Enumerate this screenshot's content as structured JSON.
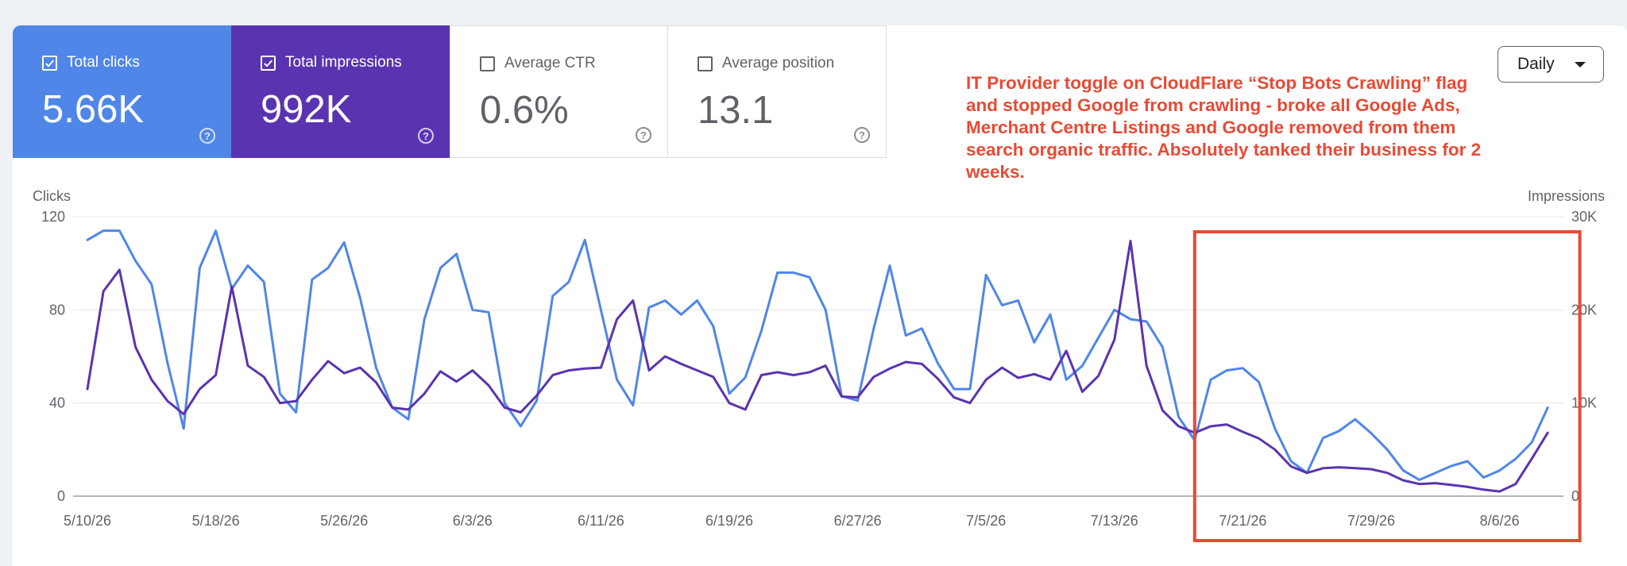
{
  "metrics": [
    {
      "label": "Total clicks",
      "value": "5.66K",
      "checked": true
    },
    {
      "label": "Total impressions",
      "value": "992K",
      "checked": true
    },
    {
      "label": "Average CTR",
      "value": "0.6%",
      "checked": false
    },
    {
      "label": "Average position",
      "value": "13.1",
      "checked": false
    }
  ],
  "help_glyph": "?",
  "dropdown": {
    "label": "Daily"
  },
  "annotation": "IT Provider toggle on CloudFlare “Stop Bots Crawling” flag and stopped Google from crawling - broke all Google Ads, Merchant Centre Listings and Google removed from them search organic traffic. Absolutely tanked their business for 2 weeks.",
  "colors": {
    "clicks": "#4f86e8",
    "impressions": "#5a34b0",
    "annotation": "#e84a34",
    "grid": "#e4e6ea"
  },
  "chart_data": {
    "type": "line",
    "left_axis_title": "Clicks",
    "right_axis_title": "Impressions",
    "left_ticks": [
      "120",
      "80",
      "40",
      "0"
    ],
    "right_ticks": [
      "30K",
      "20K",
      "10K",
      "0"
    ],
    "ylim_clicks": [
      0,
      120
    ],
    "ylim_impressions": [
      0,
      30000
    ],
    "x_tick_labels": [
      "5/10/26",
      "5/18/26",
      "5/26/26",
      "6/3/26",
      "6/11/26",
      "6/19/26",
      "6/27/26",
      "7/5/26",
      "7/13/26",
      "7/21/26",
      "7/29/26",
      "8/6/26"
    ],
    "x_start": "5/10/26",
    "grid": true,
    "highlight_box": {
      "from": "7/18/26",
      "to": "8/11/26",
      "color": "#e84a34"
    },
    "series": [
      {
        "name": "Clicks",
        "axis": "left",
        "values": [
          110,
          114,
          114,
          101,
          91,
          57,
          29,
          98,
          114,
          89,
          99,
          92,
          44,
          36,
          93,
          98,
          109,
          85,
          55,
          38,
          33,
          76,
          98,
          104,
          80,
          79,
          40,
          30,
          41,
          86,
          92,
          110,
          80,
          50,
          39,
          81,
          84,
          78,
          84,
          73,
          44,
          51,
          71,
          96,
          96,
          94,
          80,
          43,
          41,
          72,
          99,
          69,
          72,
          57,
          46,
          46,
          95,
          82,
          84,
          66,
          78,
          50,
          56,
          68,
          80,
          76,
          75,
          64,
          34,
          24,
          50,
          54,
          55,
          49,
          29,
          15,
          10,
          25,
          28,
          33,
          27,
          20,
          11,
          7,
          10,
          13,
          15,
          8,
          11,
          16,
          23,
          38
        ]
      },
      {
        "name": "Impressions",
        "axis": "right",
        "values": [
          11500,
          22000,
          24300,
          16000,
          12500,
          10200,
          8800,
          11500,
          13000,
          22500,
          14000,
          12800,
          10000,
          10200,
          12500,
          14500,
          13200,
          13800,
          12200,
          9500,
          9300,
          11000,
          13400,
          12300,
          13500,
          11900,
          9500,
          9000,
          10800,
          13000,
          13500,
          13700,
          13800,
          19000,
          21000,
          13500,
          15000,
          14200,
          13500,
          12800,
          10000,
          9300,
          13000,
          13300,
          13000,
          13300,
          14000,
          10700,
          10600,
          12800,
          13700,
          14400,
          14200,
          12600,
          10600,
          10000,
          12500,
          13800,
          12700,
          13100,
          12500,
          15600,
          11200,
          12900,
          16800,
          27400,
          14000,
          9200,
          7500,
          6800,
          7500,
          7700,
          6900,
          6200,
          5000,
          3200,
          2500,
          3000,
          3100,
          3000,
          2900,
          2500,
          1700,
          1300,
          1400,
          1200,
          1000,
          700,
          500,
          1300,
          4000,
          6800
        ]
      }
    ]
  }
}
